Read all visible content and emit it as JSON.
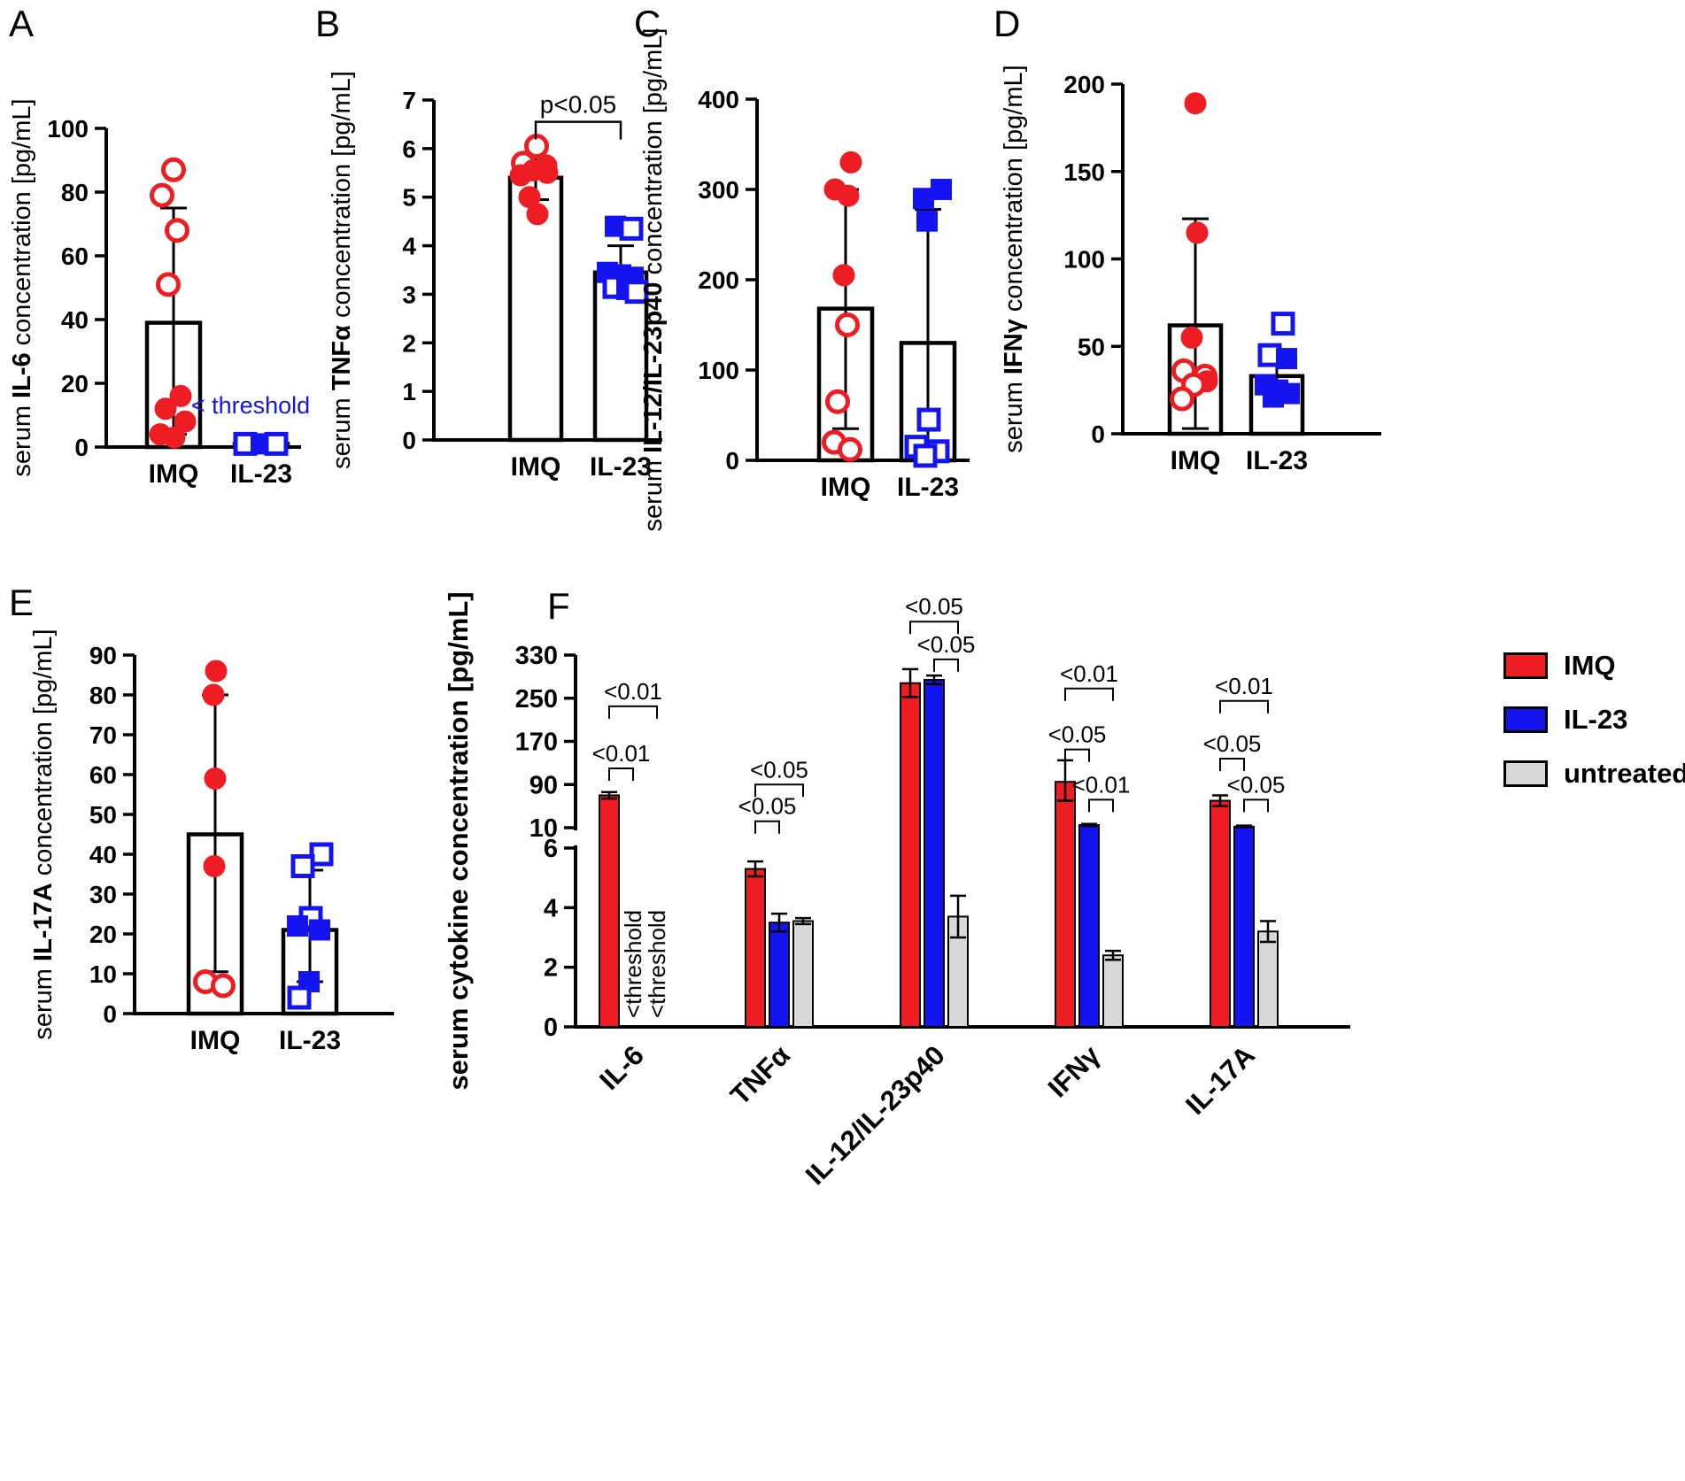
{
  "colors": {
    "red": "#ee1c23",
    "blue": "#1414f0",
    "gray": "#d8d8d8",
    "black": "#000000",
    "white": "#ffffff"
  },
  "legend": {
    "items": [
      {
        "label": "IMQ",
        "color": "red"
      },
      {
        "label": "IL-23",
        "color": "blue"
      },
      {
        "label": "untreated",
        "color": "gray"
      }
    ]
  },
  "chart_data": [
    {
      "panel_label": "A",
      "type": "scatter",
      "ylabel": {
        "pre": "serum ",
        "bold": "IL-6",
        "post": " concentration [pg/mL]"
      },
      "ylim": [
        0,
        100
      ],
      "yticks": [
        0,
        20,
        40,
        60,
        80,
        100
      ],
      "categories": [
        "IMQ",
        "IL-23"
      ],
      "groups": [
        {
          "name": "IMQ",
          "color": "red",
          "marker": "circle",
          "bar": 39,
          "err": [
            4,
            75
          ],
          "points": [
            {
              "v": 87,
              "open": true,
              "dx": 0
            },
            {
              "v": 79,
              "open": true,
              "dx": -13
            },
            {
              "v": 68,
              "open": true,
              "dx": 4
            },
            {
              "v": 51,
              "open": true,
              "dx": -6
            },
            {
              "v": 16,
              "open": false,
              "dx": 8
            },
            {
              "v": 12,
              "open": false,
              "dx": -9
            },
            {
              "v": 8,
              "open": false,
              "dx": 13
            },
            {
              "v": 4,
              "open": false,
              "dx": -15
            },
            {
              "v": 3,
              "open": false,
              "dx": 1
            }
          ]
        },
        {
          "name": "IL-23",
          "color": "blue",
          "marker": "square",
          "bar": 1,
          "err": null,
          "points": [
            {
              "v": 1,
              "open": true,
              "dx": -18
            },
            {
              "v": 1,
              "open": false,
              "dx": 0
            },
            {
              "v": 1,
              "open": true,
              "dx": 17
            }
          ]
        }
      ],
      "annotation": {
        "text": "< threshold",
        "color": "blue",
        "value": 13,
        "dx": -12
      }
    },
    {
      "panel_label": "B",
      "type": "scatter",
      "ylabel": {
        "pre": "serum ",
        "bold": "TNFα",
        "post": " concentration [pg/mL]"
      },
      "ylim": [
        0,
        7
      ],
      "yticks": [
        0,
        1,
        2,
        3,
        4,
        5,
        6,
        7
      ],
      "categories": [
        "IMQ",
        "IL-23"
      ],
      "groups": [
        {
          "name": "IMQ",
          "color": "red",
          "marker": "circle",
          "bar": 5.4,
          "err": [
            4.95,
            5.85
          ],
          "points": [
            {
              "v": 6.05,
              "open": true,
              "dx": 1
            },
            {
              "v": 5.7,
              "open": true,
              "dx": -14
            },
            {
              "v": 5.65,
              "open": false,
              "dx": 12
            },
            {
              "v": 5.55,
              "open": false,
              "dx": -3
            },
            {
              "v": 5.5,
              "open": false,
              "dx": 13
            },
            {
              "v": 5.45,
              "open": false,
              "dx": -17
            },
            {
              "v": 5.0,
              "open": false,
              "dx": -7
            },
            {
              "v": 4.65,
              "open": false,
              "dx": 2
            }
          ]
        },
        {
          "name": "IL-23",
          "color": "blue",
          "marker": "square",
          "bar": 3.45,
          "err": [
            3.0,
            4.0
          ],
          "points": [
            {
              "v": 4.4,
              "open": false,
              "dx": -6
            },
            {
              "v": 4.35,
              "open": true,
              "dx": 12
            },
            {
              "v": 3.45,
              "open": false,
              "dx": -15
            },
            {
              "v": 3.4,
              "open": false,
              "dx": 0
            },
            {
              "v": 3.35,
              "open": false,
              "dx": 14
            },
            {
              "v": 3.15,
              "open": true,
              "dx": -7
            },
            {
              "v": 3.1,
              "open": false,
              "dx": 7
            },
            {
              "v": 3.05,
              "open": true,
              "dx": 18
            }
          ]
        }
      ],
      "bracket": {
        "label": "p<0.05",
        "value": 6.55
      }
    },
    {
      "panel_label": "C",
      "type": "scatter",
      "ylabel": {
        "pre": "serum ",
        "bold": "IL-12/IL-23p40",
        "post": " concentration [pg/mL]"
      },
      "ylim": [
        0,
        400
      ],
      "yticks": [
        0,
        100,
        200,
        300,
        400
      ],
      "categories": [
        "IMQ",
        "IL-23"
      ],
      "groups": [
        {
          "name": "IMQ",
          "color": "red",
          "marker": "circle",
          "bar": 168,
          "err": [
            35,
            300
          ],
          "points": [
            {
              "v": 330,
              "open": false,
              "dx": 6
            },
            {
              "v": 300,
              "open": false,
              "dx": -12
            },
            {
              "v": 293,
              "open": false,
              "dx": 3
            },
            {
              "v": 205,
              "open": false,
              "dx": -2
            },
            {
              "v": 150,
              "open": true,
              "dx": 2
            },
            {
              "v": 65,
              "open": true,
              "dx": -9
            },
            {
              "v": 20,
              "open": true,
              "dx": -13
            },
            {
              "v": 12,
              "open": true,
              "dx": 5
            }
          ]
        },
        {
          "name": "IL-23",
          "color": "blue",
          "marker": "square",
          "bar": 130,
          "err": [
            5,
            278
          ],
          "points": [
            {
              "v": 300,
              "open": false,
              "dx": 15
            },
            {
              "v": 290,
              "open": false,
              "dx": -5
            },
            {
              "v": 265,
              "open": false,
              "dx": -1
            },
            {
              "v": 45,
              "open": true,
              "dx": 1
            },
            {
              "v": 15,
              "open": true,
              "dx": -13
            },
            {
              "v": 10,
              "open": true,
              "dx": 11
            },
            {
              "v": 5,
              "open": true,
              "dx": -3
            }
          ]
        }
      ]
    },
    {
      "panel_label": "D",
      "type": "scatter",
      "ylabel": {
        "pre": "serum ",
        "bold": "IFNγ",
        "post": " concentration [pg/mL]"
      },
      "ylim": [
        0,
        200
      ],
      "yticks": [
        0,
        50,
        100,
        150,
        200
      ],
      "categories": [
        "IMQ",
        "IL-23"
      ],
      "groups": [
        {
          "name": "IMQ",
          "color": "red",
          "marker": "circle",
          "bar": 62,
          "err": [
            3,
            123
          ],
          "points": [
            {
              "v": 189,
              "open": false,
              "dx": 0
            },
            {
              "v": 115,
              "open": false,
              "dx": 2
            },
            {
              "v": 55,
              "open": false,
              "dx": -4
            },
            {
              "v": 36,
              "open": true,
              "dx": -13
            },
            {
              "v": 33,
              "open": true,
              "dx": 11
            },
            {
              "v": 30,
              "open": false,
              "dx": 13
            },
            {
              "v": 28,
              "open": true,
              "dx": -2
            },
            {
              "v": 20,
              "open": true,
              "dx": -15
            }
          ]
        },
        {
          "name": "IL-23",
          "color": "blue",
          "marker": "square",
          "bar": 33,
          "err": [
            20,
            45
          ],
          "points": [
            {
              "v": 63,
              "open": true,
              "dx": 7
            },
            {
              "v": 45,
              "open": true,
              "dx": -8
            },
            {
              "v": 43,
              "open": false,
              "dx": 11
            },
            {
              "v": 28,
              "open": false,
              "dx": -13
            },
            {
              "v": 25,
              "open": false,
              "dx": 1
            },
            {
              "v": 23,
              "open": false,
              "dx": 14
            },
            {
              "v": 21,
              "open": false,
              "dx": -4
            }
          ]
        }
      ]
    },
    {
      "panel_label": "E",
      "type": "scatter",
      "ylabel": {
        "pre": "serum ",
        "bold": "IL-17A",
        "post": " concentration [pg/mL]"
      },
      "ylim": [
        0,
        90
      ],
      "yticks": [
        0,
        10,
        20,
        30,
        40,
        50,
        60,
        70,
        80,
        90
      ],
      "categories": [
        "IMQ",
        "IL-23"
      ],
      "groups": [
        {
          "name": "IMQ",
          "color": "red",
          "marker": "circle",
          "bar": 45,
          "err": [
            10.5,
            80
          ],
          "points": [
            {
              "v": 86,
              "open": false,
              "dx": 1
            },
            {
              "v": 80,
              "open": false,
              "dx": -2
            },
            {
              "v": 59,
              "open": false,
              "dx": 0
            },
            {
              "v": 37,
              "open": false,
              "dx": -1
            },
            {
              "v": 8,
              "open": true,
              "dx": -11
            },
            {
              "v": 7,
              "open": true,
              "dx": 9
            }
          ]
        },
        {
          "name": "IL-23",
          "color": "blue",
          "marker": "square",
          "bar": 21,
          "err": [
            8,
            36
          ],
          "points": [
            {
              "v": 40,
              "open": true,
              "dx": 13
            },
            {
              "v": 37,
              "open": true,
              "dx": -8
            },
            {
              "v": 24,
              "open": true,
              "dx": 1
            },
            {
              "v": 22,
              "open": false,
              "dx": -14
            },
            {
              "v": 21,
              "open": false,
              "dx": 11
            },
            {
              "v": 8,
              "open": false,
              "dx": -1
            },
            {
              "v": 4,
              "open": true,
              "dx": -12
            }
          ]
        }
      ]
    },
    {
      "panel_label": "F",
      "type": "bar",
      "ylabel": {
        "pre": "",
        "bold": "serum cytokine concentration [pg/mL]",
        "post": ""
      },
      "upper_axis": {
        "range": [
          10,
          330
        ],
        "ticks": [
          10,
          90,
          170,
          250,
          330
        ]
      },
      "lower_axis": {
        "range": [
          0,
          6
        ],
        "ticks": [
          0,
          2,
          4,
          6
        ]
      },
      "categories": [
        "IL-6",
        "TNFα",
        "IL-12/IL-23p40",
        "IFNγ",
        "IL-17A"
      ],
      "series": [
        {
          "name": "IMQ",
          "color": "red",
          "values": [
            70,
            5.3,
            278,
            95,
            60
          ],
          "err_lo": [
            64,
            5.05,
            252,
            60,
            50
          ],
          "err_hi": [
            76,
            5.55,
            304,
            135,
            70
          ]
        },
        {
          "name": "IL-23",
          "color": "blue",
          "values": [
            null,
            3.5,
            284,
            15,
            12
          ],
          "err_lo": [
            null,
            3.2,
            276,
            13,
            11
          ],
          "err_hi": [
            null,
            3.8,
            292,
            17,
            14
          ]
        },
        {
          "name": "untreated",
          "color": "gray",
          "values": [
            null,
            3.55,
            3.7,
            2.4,
            3.2
          ],
          "err_lo": [
            null,
            3.45,
            3.0,
            2.25,
            2.85
          ],
          "err_hi": [
            null,
            3.65,
            4.4,
            2.55,
            3.55
          ]
        }
      ],
      "threshold_notes": [
        {
          "cat": 0,
          "series": 1,
          "text": "<threshold"
        },
        {
          "cat": 0,
          "series": 2,
          "text": "<threshold"
        }
      ],
      "brackets": [
        {
          "cat": 0,
          "from": 0,
          "to": 1,
          "value": 120,
          "label": "<0.01"
        },
        {
          "cat": 0,
          "from": 0,
          "to": 2,
          "value": 235,
          "label": "<0.01"
        },
        {
          "cat": 1,
          "from": 0,
          "to": 1,
          "value": 22,
          "label": "<0.05"
        },
        {
          "cat": 1,
          "from": 0,
          "to": 2,
          "value": 90,
          "label": "<0.05"
        },
        {
          "cat": 2,
          "from": 0,
          "to": 2,
          "value": 392,
          "label": "<0.05"
        },
        {
          "cat": 2,
          "from": 1,
          "to": 2,
          "value": 322,
          "label": "<0.05"
        },
        {
          "cat": 3,
          "from": 0,
          "to": 2,
          "value": 268,
          "label": "<0.01"
        },
        {
          "cat": 3,
          "from": 0,
          "to": 1,
          "value": 155,
          "label": "<0.05"
        },
        {
          "cat": 3,
          "from": 1,
          "to": 2,
          "value": 62,
          "label": "<0.01"
        },
        {
          "cat": 4,
          "from": 0,
          "to": 2,
          "value": 245,
          "label": "<0.01"
        },
        {
          "cat": 4,
          "from": 0,
          "to": 1,
          "value": 138,
          "label": "<0.05"
        },
        {
          "cat": 4,
          "from": 1,
          "to": 2,
          "value": 62,
          "label": "<0.05"
        }
      ]
    }
  ]
}
